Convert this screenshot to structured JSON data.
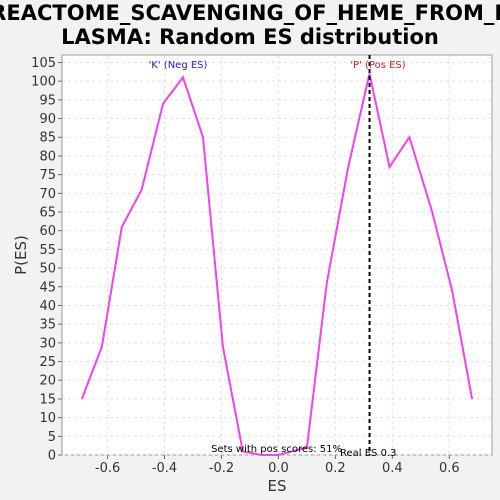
{
  "chart_data": {
    "type": "line",
    "title_lines": [
      "REACTOME_SCAVENGING_OF_HEME_FROM_P",
      "LASMA: Random ES distribution"
    ],
    "xlabel": "ES",
    "ylabel": "P(ES)",
    "xlim": [
      -0.76,
      0.75
    ],
    "ylim": [
      0,
      107
    ],
    "x_ticks": [
      -0.6,
      -0.4,
      -0.2,
      0.0,
      0.2,
      0.4,
      0.6
    ],
    "x_tick_labels": [
      "-0.6",
      "-0.4",
      "-0.2",
      "0.0",
      "0.2",
      "0.4",
      "0.6"
    ],
    "y_ticks": [
      0,
      5,
      10,
      15,
      20,
      25,
      30,
      35,
      40,
      45,
      50,
      55,
      60,
      65,
      70,
      75,
      80,
      85,
      90,
      95,
      100,
      105
    ],
    "y_tick_labels": [
      "0",
      "5",
      "10",
      "15",
      "20",
      "25",
      "30",
      "35",
      "40",
      "45",
      "50",
      "55",
      "60",
      "65",
      "70",
      "75",
      "80",
      "85",
      "90",
      "95",
      "100",
      "105"
    ],
    "grid": true,
    "line_color": "#ee44ee",
    "real_es_line_color": "#000000",
    "neg_label_color": "#2222bb",
    "pos_label_color": "#cc2222",
    "series": [
      {
        "x": [
          -0.69,
          -0.62,
          -0.55,
          -0.48,
          -0.405,
          -0.335,
          -0.265,
          -0.195,
          -0.125,
          -0.06,
          0.0,
          0.1,
          0.17,
          0.245,
          0.32,
          0.39,
          0.46,
          0.54,
          0.61,
          0.68
        ],
        "y": [
          15,
          29,
          61,
          71,
          94,
          101,
          85,
          29,
          1,
          0,
          0,
          2,
          46,
          77,
          102,
          77,
          85,
          65,
          44,
          15
        ]
      }
    ],
    "real_es": 0.32,
    "annotations": {
      "neg_label": "'K' (Neg ES)",
      "pos_label": "'P' (Pos ES)",
      "sets_text": "Sets with pos scores: 51%",
      "real_es_text": "Real ES 0.3"
    }
  }
}
